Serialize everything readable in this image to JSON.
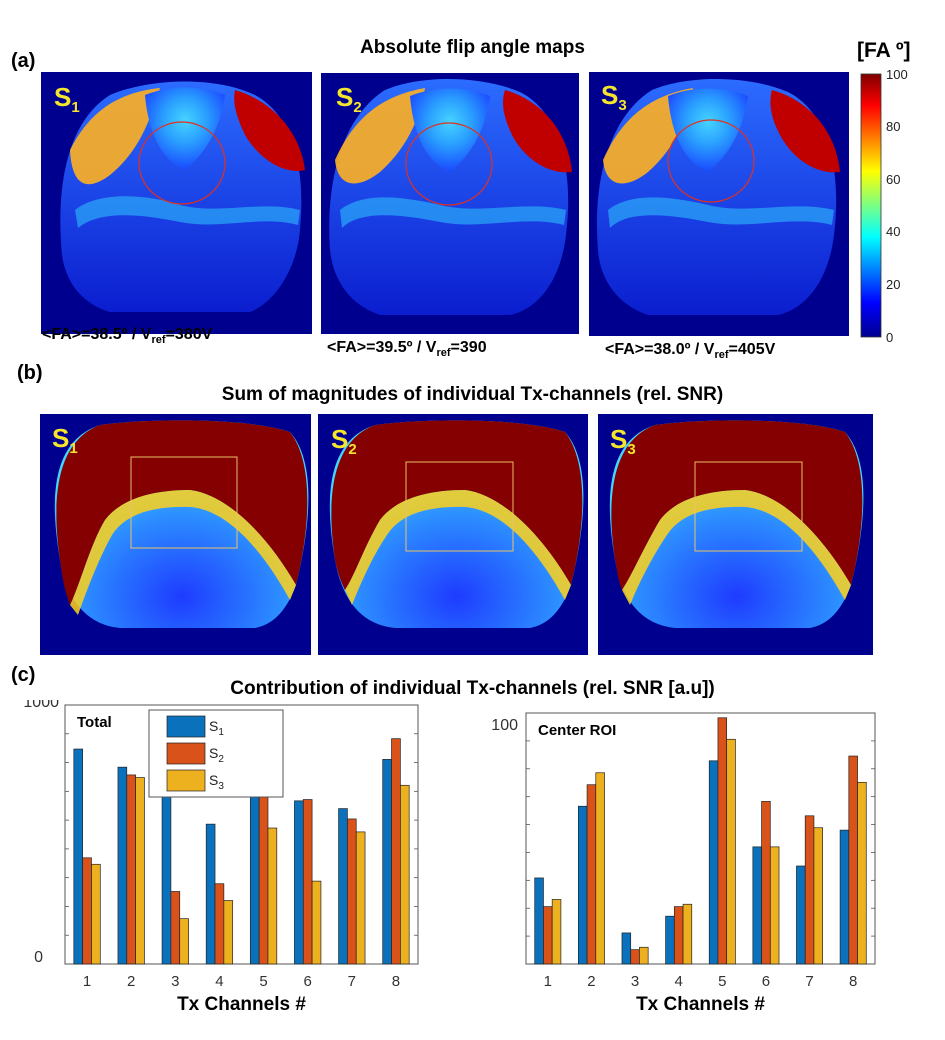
{
  "panel_labels": {
    "a": "(a)",
    "b": "(b)",
    "c": "(c)"
  },
  "section_a": {
    "title": "Absolute flip angle maps",
    "maps": [
      {
        "tag": "S",
        "sub": "1",
        "fa_prefix": "<FA>=",
        "fa_value": "38.5º",
        "vref_label": " / V",
        "vref_sub": "ref",
        "vref_value": "=380V"
      },
      {
        "tag": "S",
        "sub": "2",
        "fa_prefix": "<FA>=",
        "fa_value": "39.5º",
        "vref_label": " / V",
        "vref_sub": "ref",
        "vref_value": "=390"
      },
      {
        "tag": "S",
        "sub": "3",
        "fa_prefix": "<FA>=",
        "fa_value": "38.0º",
        "vref_label": " / V",
        "vref_sub": "ref",
        "vref_value": "=405V"
      }
    ],
    "colorbar": {
      "title": "[FA º]",
      "ticks": [
        "100",
        "80",
        "60",
        "40",
        "20",
        "0"
      ]
    }
  },
  "section_b": {
    "title": "Sum of magnitudes of individual Tx-channels (rel. SNR)",
    "maps": [
      {
        "tag": "S",
        "sub": "1"
      },
      {
        "tag": "S",
        "sub": "2"
      },
      {
        "tag": "S",
        "sub": "3"
      }
    ]
  },
  "section_c": {
    "title": "Contribution of individual Tx-channels (rel. SNR [a.u])"
  },
  "colors": {
    "s1": "#0a72bd",
    "s2": "#d95219",
    "s3": "#edb120",
    "map_bg": "#00008f",
    "tag": "#f5e52c"
  },
  "chart_data": [
    {
      "type": "bar",
      "title": "Total",
      "xlabel": "Tx Channels #",
      "ylabel": "",
      "ylim": [
        0,
        1000
      ],
      "ytick_labels": [
        "0",
        "1000"
      ],
      "categories": [
        "1",
        "2",
        "3",
        "4",
        "5",
        "6",
        "7",
        "8"
      ],
      "legend_position": "top-left",
      "series": [
        {
          "name": "S1",
          "label_main": "S",
          "label_sub": "1",
          "values": [
            830,
            760,
            660,
            540,
            680,
            630,
            600,
            790
          ]
        },
        {
          "name": "S2",
          "label_main": "S",
          "label_sub": "2",
          "values": [
            410,
            730,
            280,
            310,
            650,
            635,
            560,
            870
          ]
        },
        {
          "name": "S3",
          "label_main": "S",
          "label_sub": "3",
          "values": [
            385,
            720,
            175,
            245,
            525,
            320,
            510,
            690
          ]
        }
      ]
    },
    {
      "type": "bar",
      "title": "Center ROI",
      "xlabel": "Tx Channels #",
      "ylabel": "",
      "ylim": [
        0,
        105
      ],
      "ytick_labels": [
        "100"
      ],
      "ytick_values": [
        100
      ],
      "categories": [
        "1",
        "2",
        "3",
        "4",
        "5",
        "6",
        "7",
        "8"
      ],
      "series": [
        {
          "name": "S1",
          "values": [
            36,
            66,
            13,
            20,
            85,
            49,
            41,
            56
          ]
        },
        {
          "name": "S2",
          "values": [
            24,
            75,
            6,
            24,
            103,
            68,
            62,
            87
          ]
        },
        {
          "name": "S3",
          "values": [
            27,
            80,
            7,
            25,
            94,
            49,
            57,
            76
          ]
        }
      ]
    }
  ]
}
